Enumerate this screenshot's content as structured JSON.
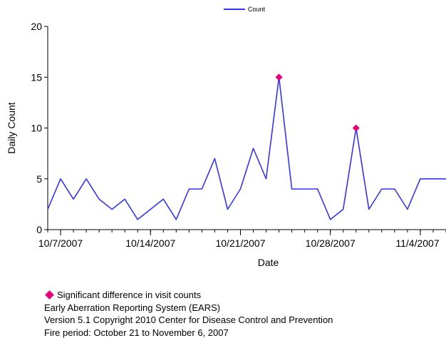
{
  "chart_data": {
    "type": "line",
    "xlabel": "Date",
    "ylabel": "Daily Count",
    "ylim": [
      0,
      20
    ],
    "yticks": [
      0,
      5,
      10,
      15,
      20
    ],
    "x": [
      "2007-10-06",
      "2007-10-07",
      "2007-10-08",
      "2007-10-09",
      "2007-10-10",
      "2007-10-11",
      "2007-10-12",
      "2007-10-13",
      "2007-10-14",
      "2007-10-15",
      "2007-10-16",
      "2007-10-17",
      "2007-10-18",
      "2007-10-19",
      "2007-10-20",
      "2007-10-21",
      "2007-10-22",
      "2007-10-23",
      "2007-10-24",
      "2007-10-25",
      "2007-10-26",
      "2007-10-27",
      "2007-10-28",
      "2007-10-29",
      "2007-10-30",
      "2007-10-31",
      "2007-11-01",
      "2007-11-02",
      "2007-11-03",
      "2007-11-04",
      "2007-11-05",
      "2007-11-06"
    ],
    "xtick_labels": [
      "10/7/2007",
      "10/14/2007",
      "10/21/2007",
      "10/28/2007",
      "11/4/2007"
    ],
    "series": [
      {
        "name": "Count",
        "color": "#3333ff",
        "values": [
          2,
          5,
          3,
          5,
          3,
          2,
          3,
          1,
          2,
          3,
          1,
          4,
          4,
          7,
          2,
          4,
          8,
          5,
          15,
          4,
          4,
          4,
          1,
          2,
          10,
          2,
          4,
          4,
          2,
          5,
          5,
          5
        ]
      }
    ],
    "significant_points": [
      {
        "x": "2007-10-24",
        "y": 15
      },
      {
        "x": "2007-10-30",
        "y": 10
      }
    ],
    "significant_color": "#e6007a",
    "legend": "top"
  },
  "notes": {
    "significant_label": "Significant difference in visit counts",
    "line1": "Early Aberration Reporting System (EARS)",
    "line2": "Version 5.1 Copyright 2010 Center for Disease Control and Prevention",
    "line3": "Fire period: October 21 to November 6, 2007"
  }
}
